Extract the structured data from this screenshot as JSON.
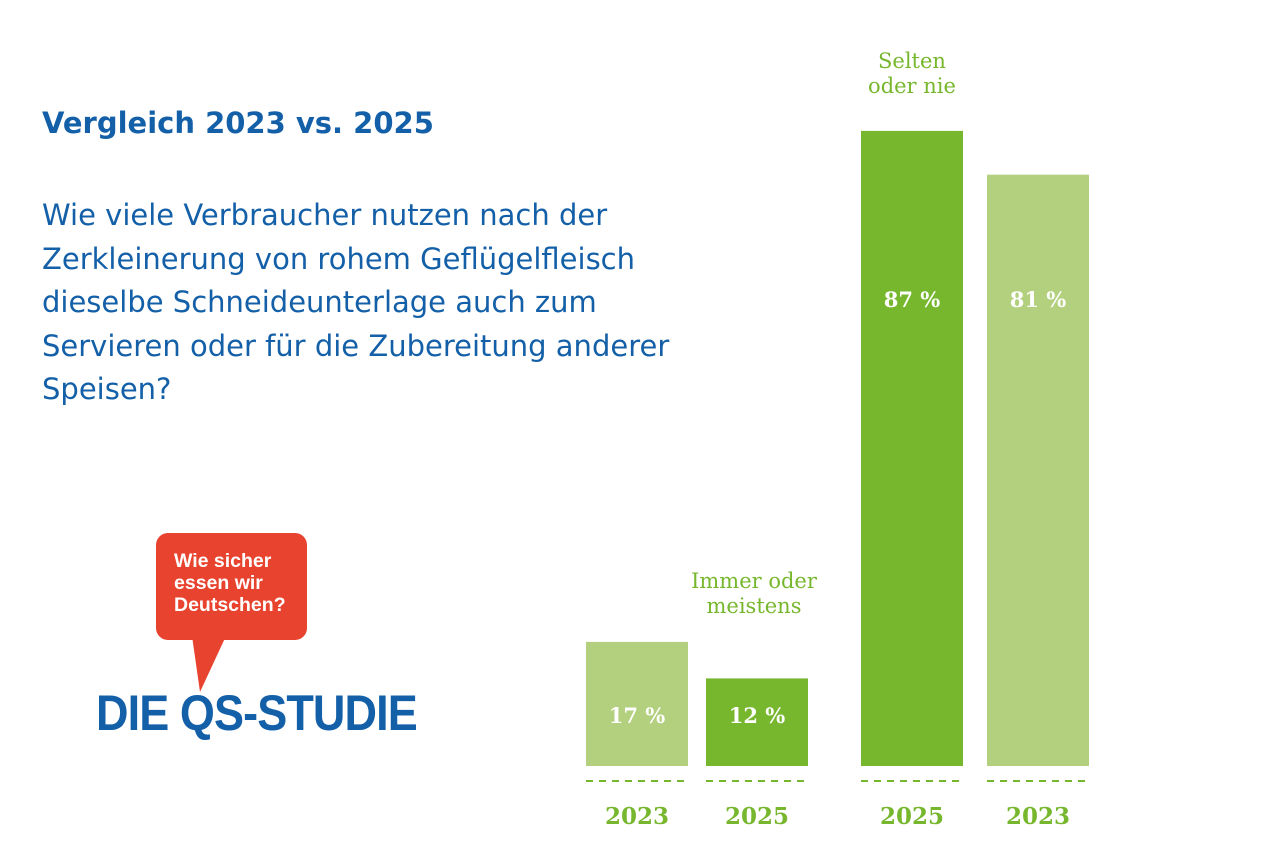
{
  "header": {
    "title": "Vergleich 2023 vs. 2025",
    "question_lines": [
      "Wie viele Verbraucher nutzen nach der",
      "Zerkleinerung von rohem Geflügelfleisch",
      "dieselbe Schneideunterlage auch zum",
      "Servieren oder für die Zubereitung anderer",
      "Speisen?"
    ]
  },
  "logo": {
    "bubble_lines": [
      "Wie sicher",
      "essen wir",
      "Deutschen?"
    ],
    "wordmark": "DIE QS-STUDIE",
    "colors": {
      "bubble": "#e8432e",
      "wordmark": "#1460a8"
    }
  },
  "chart_data": {
    "type": "bar",
    "ylim": [
      0,
      100
    ],
    "colors": {
      "light": "#b2d07e",
      "dark": "#77b72d",
      "label": "#77b72d"
    },
    "groups": [
      {
        "label_lines": [
          "Immer oder",
          "meistens"
        ],
        "bars": [
          {
            "year": "2023",
            "value": 17,
            "value_label": "17 %",
            "shade": "light"
          },
          {
            "year": "2025",
            "value": 12,
            "value_label": "12 %",
            "shade": "dark"
          }
        ]
      },
      {
        "label_lines": [
          "Selten",
          "oder nie"
        ],
        "bars": [
          {
            "year": "2025",
            "value": 87,
            "value_label": "87 %",
            "shade": "dark"
          },
          {
            "year": "2023",
            "value": 81,
            "value_label": "81 %",
            "shade": "light"
          }
        ]
      }
    ]
  }
}
